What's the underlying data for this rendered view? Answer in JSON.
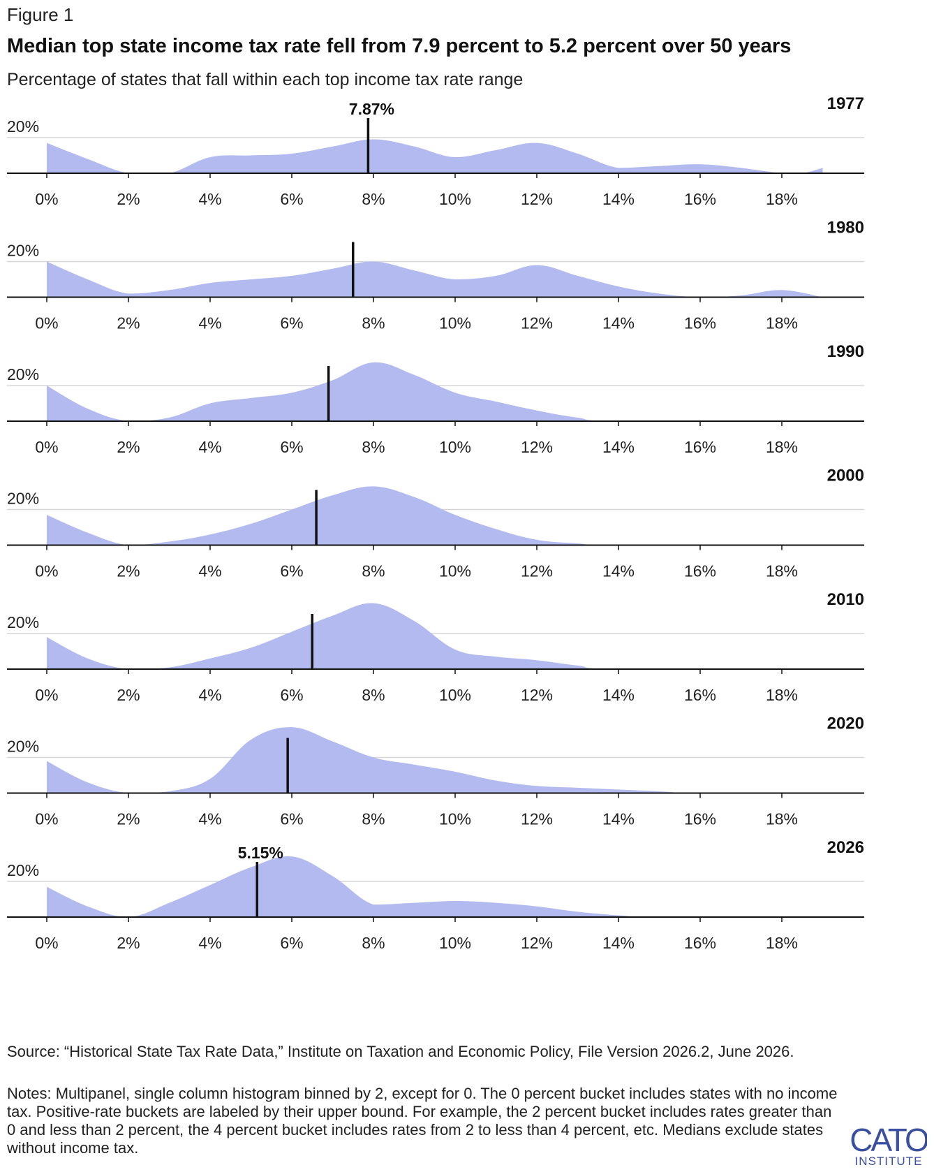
{
  "figure_label": "Figure 1",
  "title": "Median top state income tax rate fell from 7.9 percent to 5.2 percent over 50 years",
  "subtitle": "Percentage of states that fall within each top income tax rate range",
  "source": "Source: “Historical State Tax Rate Data,” Institute on Taxation and Economic Policy, File Version 2026.2, June 2026.",
  "notes": "Notes: Multipanel, single column histogram binned by 2, except for 0. The 0 percent bucket includes states with no income tax. Positive-rate buckets are labeled by their upper bound. For example, the 2 percent bucket includes rates greater than 0 and less than 2 percent, the 4 percent bucket includes rates from 2 to less than 4 percent, etc. Medians exclude states without income tax.",
  "logo": {
    "text": "CATO",
    "subtext": "INSTITUTE",
    "color": "#3a4fa0"
  },
  "colors": {
    "area": "#b3baf0",
    "median": "#111111",
    "gridline": "#d6d6d6",
    "baseline": "#111111"
  },
  "chart_data": {
    "type": "area",
    "xlim": [
      0,
      19
    ],
    "ylim": [
      0,
      30
    ],
    "y_tick": {
      "value": 20,
      "label": "20%"
    },
    "x_ticks": [
      0,
      2,
      4,
      6,
      8,
      10,
      12,
      14,
      16,
      18
    ],
    "x_tick_labels": [
      "0%",
      "2%",
      "4%",
      "6%",
      "8%",
      "10%",
      "12%",
      "14%",
      "16%",
      "18%"
    ],
    "panels": [
      {
        "year": "1977",
        "median": 7.87,
        "median_label": "7.87%",
        "points": [
          [
            0,
            17
          ],
          [
            1,
            8
          ],
          [
            2,
            0
          ],
          [
            3,
            0
          ],
          [
            4,
            9
          ],
          [
            5,
            10
          ],
          [
            6,
            11
          ],
          [
            7,
            15
          ],
          [
            8,
            19
          ],
          [
            9,
            15
          ],
          [
            10,
            9
          ],
          [
            11,
            13
          ],
          [
            12,
            17
          ],
          [
            13,
            11
          ],
          [
            14,
            3
          ],
          [
            15,
            4
          ],
          [
            16,
            5
          ],
          [
            17,
            3
          ],
          [
            18,
            0
          ],
          [
            18.5,
            0
          ],
          [
            19,
            3
          ]
        ]
      },
      {
        "year": "1980",
        "median": 7.5,
        "median_label": "",
        "points": [
          [
            0,
            20
          ],
          [
            1,
            10
          ],
          [
            2,
            2
          ],
          [
            3,
            4
          ],
          [
            4,
            8
          ],
          [
            5,
            10
          ],
          [
            6,
            12
          ],
          [
            7,
            16
          ],
          [
            8,
            20
          ],
          [
            9,
            15
          ],
          [
            10,
            10
          ],
          [
            11,
            12
          ],
          [
            12,
            18
          ],
          [
            13,
            12
          ],
          [
            14,
            6
          ],
          [
            15,
            2
          ],
          [
            16,
            0
          ],
          [
            17,
            1
          ],
          [
            18,
            4
          ],
          [
            19,
            0
          ]
        ]
      },
      {
        "year": "1990",
        "median": 6.9,
        "median_label": "",
        "points": [
          [
            0,
            20
          ],
          [
            1,
            7
          ],
          [
            2,
            0
          ],
          [
            3,
            2
          ],
          [
            4,
            10
          ],
          [
            5,
            13
          ],
          [
            6,
            16
          ],
          [
            7,
            23
          ],
          [
            8,
            33
          ],
          [
            9,
            26
          ],
          [
            10,
            16
          ],
          [
            11,
            11
          ],
          [
            12,
            6
          ],
          [
            13,
            2
          ],
          [
            14,
            0
          ],
          [
            19,
            0
          ]
        ]
      },
      {
        "year": "2000",
        "median": 6.6,
        "median_label": "",
        "points": [
          [
            0,
            17
          ],
          [
            1,
            7
          ],
          [
            2,
            0
          ],
          [
            3,
            2
          ],
          [
            4,
            6
          ],
          [
            5,
            12
          ],
          [
            6,
            20
          ],
          [
            7,
            28
          ],
          [
            8,
            33
          ],
          [
            9,
            27
          ],
          [
            10,
            17
          ],
          [
            11,
            9
          ],
          [
            12,
            3
          ],
          [
            13,
            1
          ],
          [
            14,
            0
          ],
          [
            19,
            0
          ]
        ]
      },
      {
        "year": "2010",
        "median": 6.5,
        "median_label": "",
        "points": [
          [
            0,
            18
          ],
          [
            1,
            6
          ],
          [
            2,
            0
          ],
          [
            3,
            1
          ],
          [
            4,
            6
          ],
          [
            5,
            12
          ],
          [
            6,
            21
          ],
          [
            7,
            30
          ],
          [
            8,
            37
          ],
          [
            9,
            27
          ],
          [
            10,
            11
          ],
          [
            11,
            7
          ],
          [
            12,
            5
          ],
          [
            13,
            2
          ],
          [
            14,
            0
          ],
          [
            19,
            0
          ]
        ]
      },
      {
        "year": "2020",
        "median": 5.9,
        "median_label": "",
        "points": [
          [
            0,
            18
          ],
          [
            1,
            6
          ],
          [
            2,
            0
          ],
          [
            3,
            1
          ],
          [
            4,
            8
          ],
          [
            5,
            30
          ],
          [
            6,
            37
          ],
          [
            7,
            29
          ],
          [
            8,
            20
          ],
          [
            9,
            16
          ],
          [
            10,
            12
          ],
          [
            11,
            7
          ],
          [
            12,
            4
          ],
          [
            13,
            3
          ],
          [
            14,
            2
          ],
          [
            15,
            1
          ],
          [
            16,
            0
          ],
          [
            19,
            0
          ]
        ]
      },
      {
        "year": "2026",
        "median": 5.15,
        "median_label": "5.15%",
        "points": [
          [
            0,
            17
          ],
          [
            1,
            6
          ],
          [
            2,
            0
          ],
          [
            3,
            8
          ],
          [
            4,
            18
          ],
          [
            5,
            28
          ],
          [
            6,
            34
          ],
          [
            7,
            23
          ],
          [
            8,
            7
          ],
          [
            9,
            8
          ],
          [
            10,
            9
          ],
          [
            11,
            8
          ],
          [
            12,
            6
          ],
          [
            13,
            3
          ],
          [
            14,
            1
          ],
          [
            15,
            0
          ],
          [
            19,
            0
          ]
        ]
      }
    ]
  }
}
